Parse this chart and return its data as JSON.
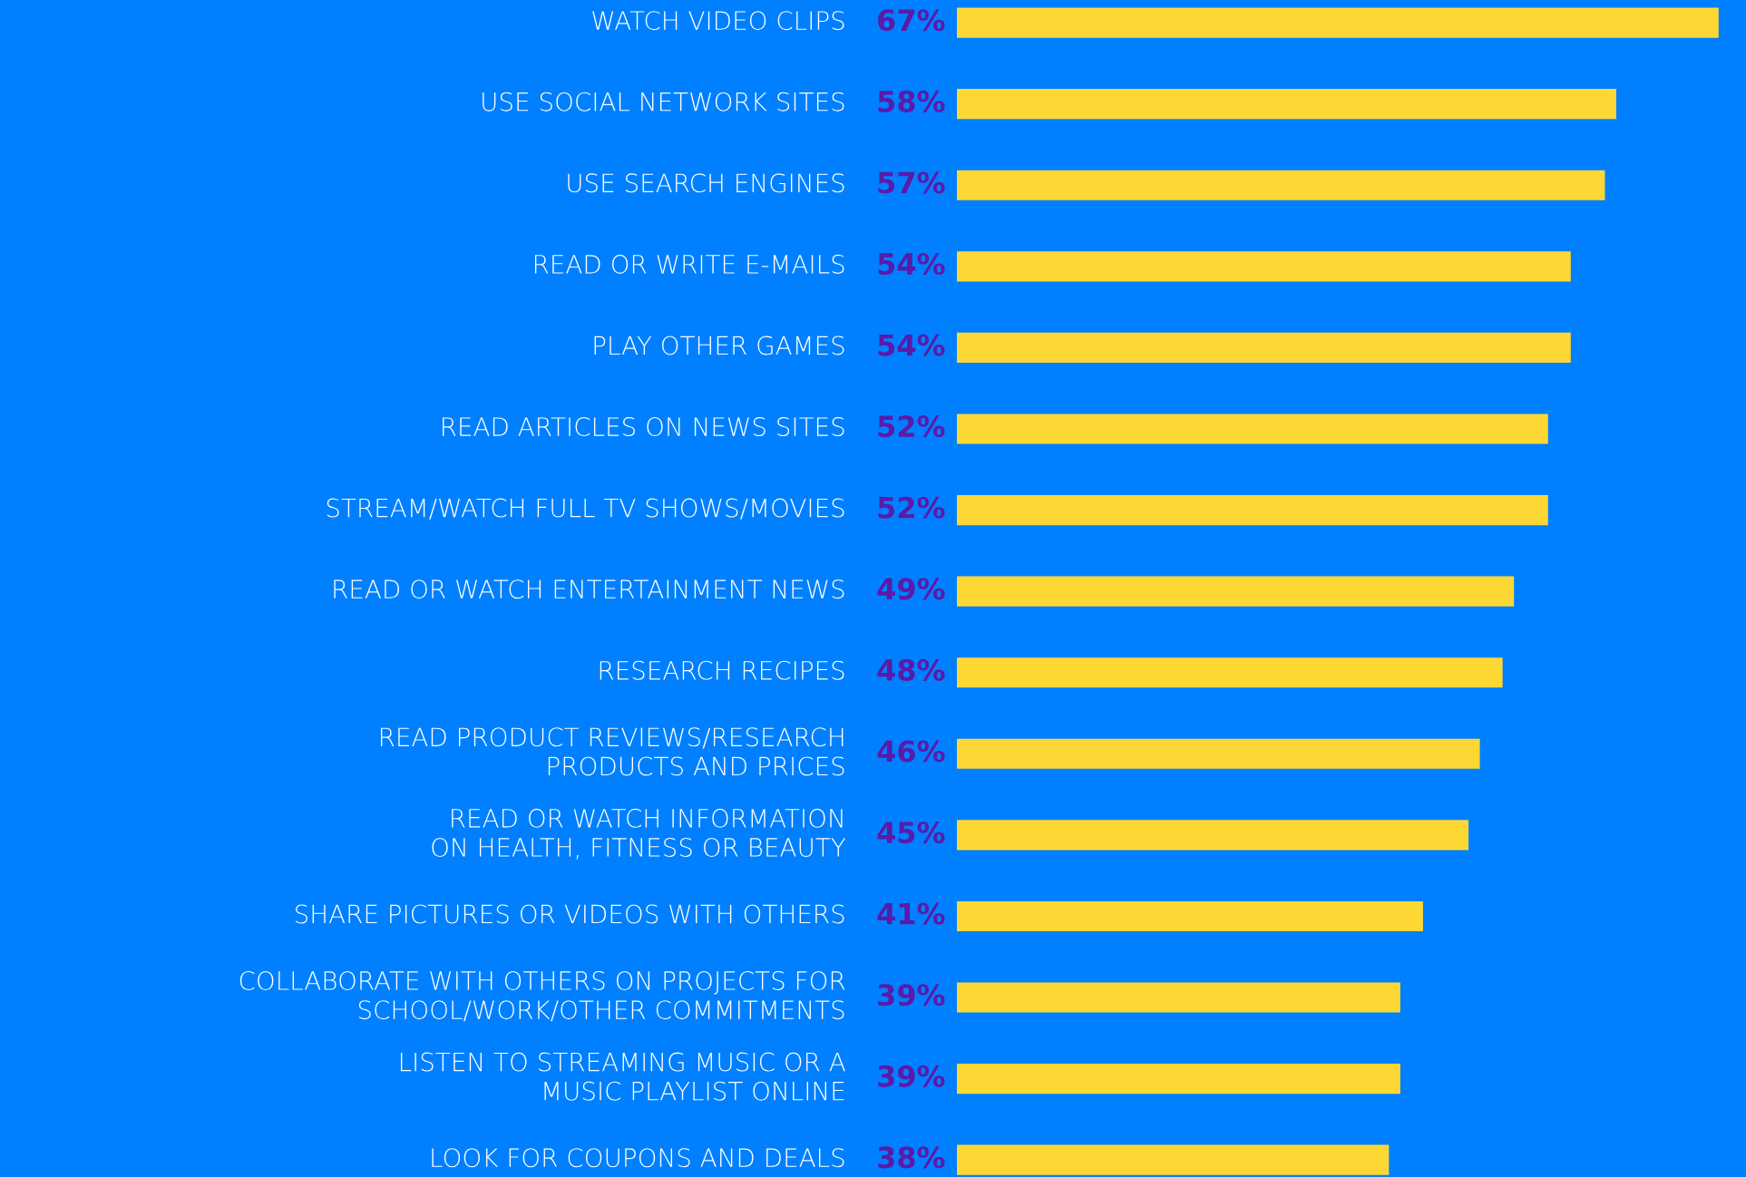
{
  "chart_data": {
    "type": "bar",
    "orientation": "horizontal",
    "categories": [
      "WATCH VIDEO CLIPS",
      "USE SOCIAL NETWORK SITES",
      "USE SEARCH ENGINES",
      "READ OR WRITE E-MAILS",
      "PLAY OTHER GAMES",
      "READ ARTICLES ON NEWS SITES",
      "STREAM/WATCH FULL TV SHOWS/MOVIES",
      "READ OR WATCH ENTERTAINMENT NEWS",
      "RESEARCH RECIPES",
      "READ PRODUCT REVIEWS/RESEARCH\nPRODUCTS AND PRICES",
      "READ OR WATCH INFORMATION\nON HEALTH, FITNESS OR BEAUTY",
      "SHARE PICTURES OR VIDEOS WITH OTHERS",
      "COLLABORATE WITH OTHERS ON PROJECTS FOR\nSCHOOL/WORK/OTHER COMMITMENTS",
      "LISTEN TO STREAMING MUSIC OR A\nMUSIC PLAYLIST ONLINE",
      "LOOK FOR COUPONS AND DEALS"
    ],
    "values": [
      67,
      58,
      57,
      54,
      54,
      52,
      52,
      49,
      48,
      46,
      45,
      41,
      39,
      39,
      38
    ],
    "value_labels": [
      "67%",
      "58%",
      "57%",
      "54%",
      "54%",
      "52%",
      "52%",
      "49%",
      "48%",
      "46%",
      "45%",
      "41%",
      "39%",
      "39%",
      "38%"
    ],
    "color": "#fdd835"
  }
}
